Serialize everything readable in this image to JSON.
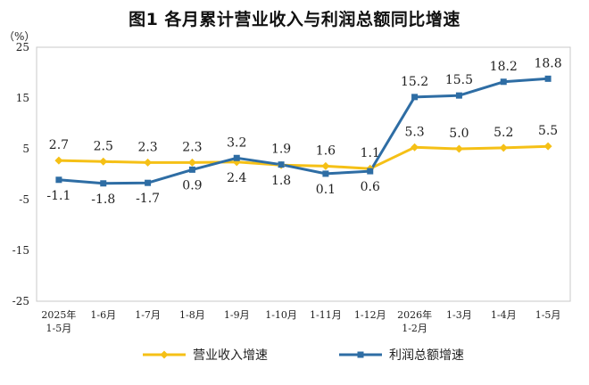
{
  "chart_data": {
    "type": "line",
    "title": "图1  各月累计营业收入与利润总额同比增速",
    "ylabel": "（%）",
    "ylim": [
      -25,
      25
    ],
    "yticks": [
      "25",
      "15",
      "5",
      "-5",
      "-15",
      "-25"
    ],
    "categories": [
      [
        "2025年",
        "1-5月"
      ],
      [
        "1-6月"
      ],
      [
        "1-7月"
      ],
      [
        "1-8月"
      ],
      [
        "1-9月"
      ],
      [
        "1-10月"
      ],
      [
        "1-11月"
      ],
      [
        "1-12月"
      ],
      [
        "2026年",
        "1-2月"
      ],
      [
        "1-3月"
      ],
      [
        "1-4月"
      ],
      [
        "1-5月"
      ]
    ],
    "series": [
      {
        "name": "营业收入增速",
        "color": "#f5c016",
        "marker": "diamond",
        "values": [
          2.7,
          2.5,
          2.3,
          2.3,
          2.4,
          1.8,
          1.6,
          1.1,
          5.3,
          5.0,
          5.2,
          5.5
        ],
        "labels": [
          "2.7",
          "2.5",
          "2.3",
          "2.3",
          "2.4",
          "1.8",
          "1.6",
          "1.1",
          "5.3",
          "5.0",
          "5.2",
          "5.5"
        ]
      },
      {
        "name": "利润总额增速",
        "color": "#2e6da4",
        "marker": "square",
        "values": [
          -1.1,
          -1.8,
          -1.7,
          0.9,
          3.2,
          1.9,
          0.1,
          0.6,
          15.2,
          15.5,
          18.2,
          18.8
        ],
        "labels": [
          "-1.1",
          "-1.8",
          "-1.7",
          "0.9",
          "3.2",
          "1.9",
          "0.1",
          "0.6",
          "15.2",
          "15.5",
          "18.2",
          "18.8"
        ]
      }
    ],
    "legend": "bottom"
  }
}
